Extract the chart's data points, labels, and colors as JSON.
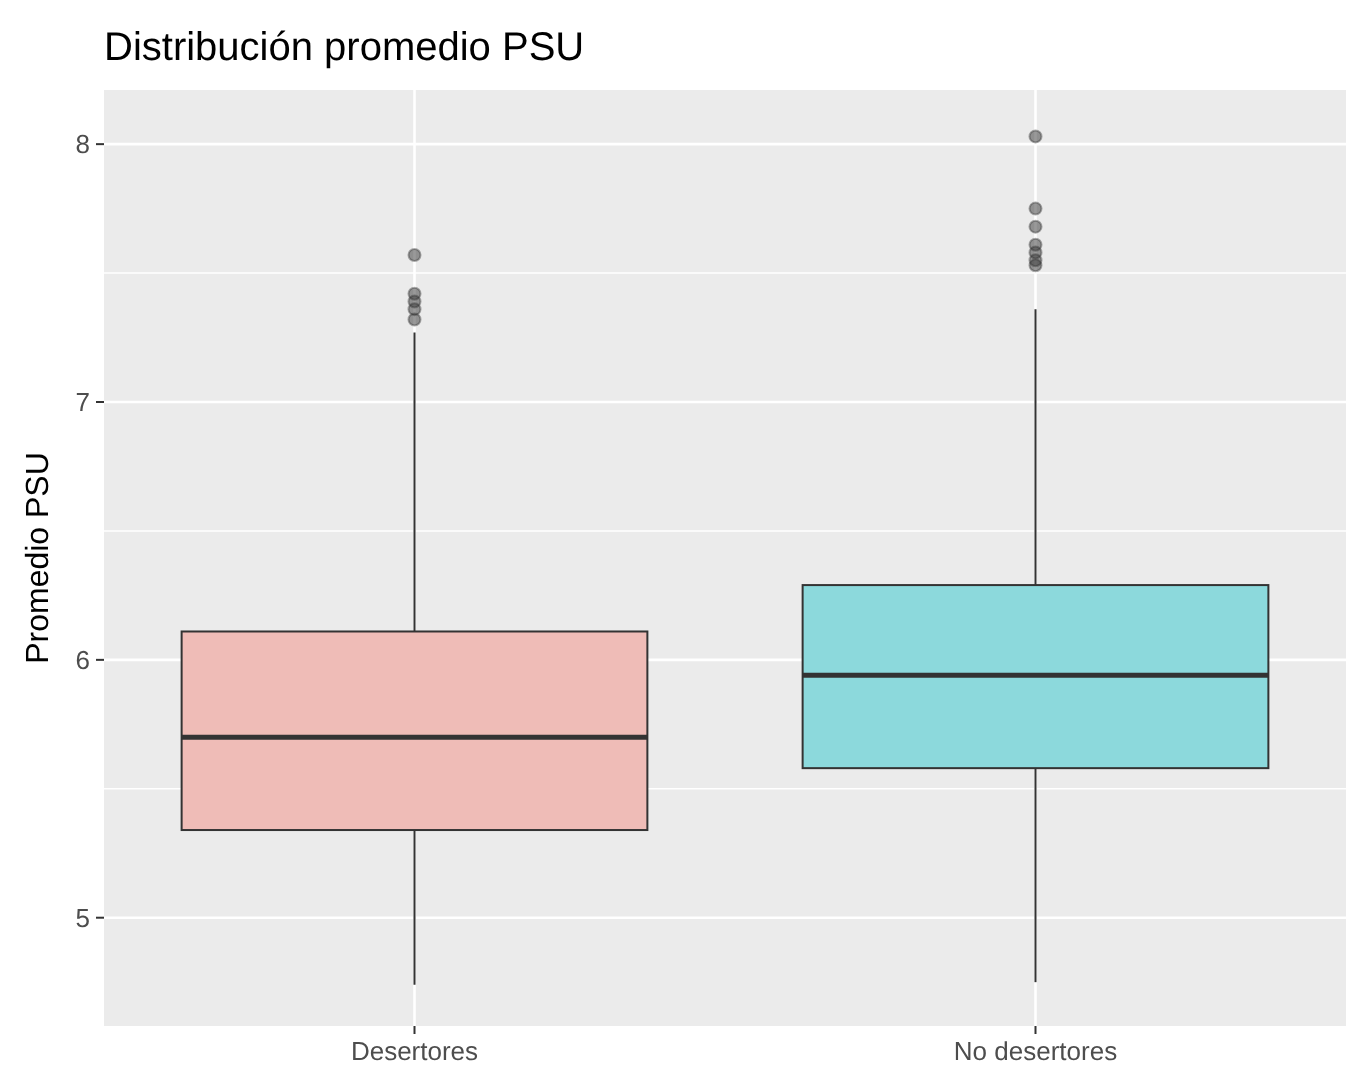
{
  "chart_data": {
    "type": "box",
    "title": "Distribución promedio PSU",
    "ylabel": "Promedio PSU",
    "categories": [
      "Desertores",
      "No desertores"
    ],
    "colors": [
      "#efbcb7",
      "#8cd9dc"
    ],
    "boxes": [
      {
        "low": 4.74,
        "q1": 5.34,
        "median": 5.7,
        "q3": 6.11,
        "high": 7.27,
        "outliers": [
          7.57,
          7.42,
          7.39,
          7.36,
          7.32
        ]
      },
      {
        "low": 4.75,
        "q1": 5.58,
        "median": 5.94,
        "q3": 6.29,
        "high": 7.36,
        "outliers": [
          8.03,
          7.75,
          7.68,
          7.61,
          7.58,
          7.55,
          7.53
        ]
      }
    ],
    "ylim": [
      4.58,
      8.21
    ],
    "yticks": [
      5,
      {
        "value": 5.5,
        "label": null
      },
      6,
      {
        "value": 6.5,
        "label": null
      },
      7,
      {
        "value": 7.5,
        "label": null
      },
      8
    ],
    "grid": true
  }
}
